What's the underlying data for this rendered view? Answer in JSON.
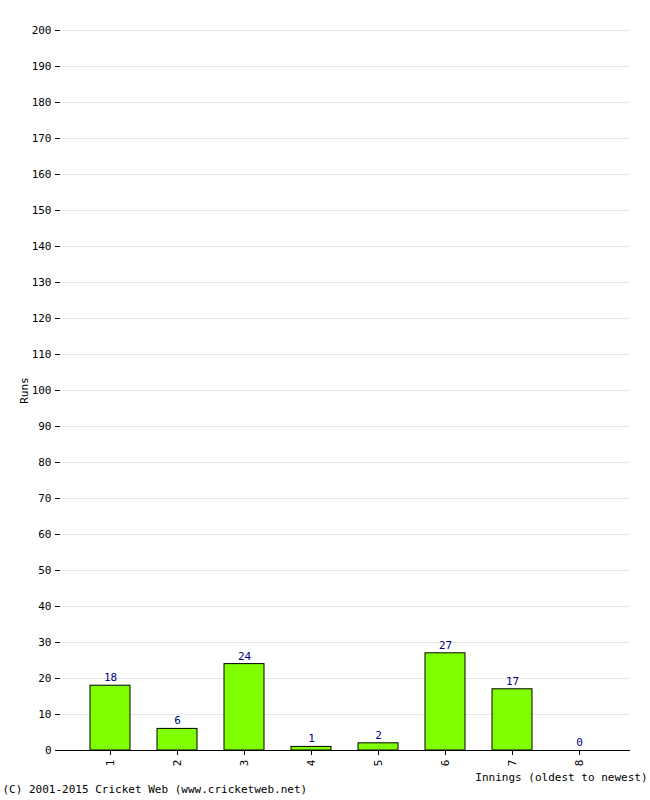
{
  "chart_data": {
    "type": "bar",
    "categories": [
      "1",
      "2",
      "3",
      "4",
      "5",
      "6",
      "7",
      "8"
    ],
    "values": [
      18,
      6,
      24,
      1,
      2,
      27,
      17,
      0
    ],
    "color": "#80ff00",
    "x_label": "Innings (oldest to newest)",
    "y_label": "Runs",
    "caption": "(C) 2001-2015 Cricket Web (www.cricketweb.net)",
    "ylim": [
      0,
      200
    ],
    "yticks": [
      0,
      10,
      20,
      30,
      40,
      50,
      60,
      70,
      80,
      90,
      100,
      110,
      120,
      130,
      140,
      150,
      160,
      170,
      180,
      190,
      200
    ],
    "grid": true,
    "data_labels": true
  }
}
